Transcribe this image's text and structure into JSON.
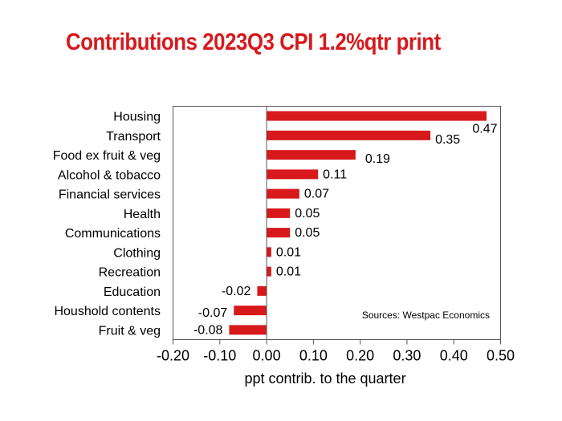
{
  "chart_data": {
    "type": "bar",
    "orientation": "horizontal",
    "title": "Contributions 2023Q3 CPI 1.2%qtr print",
    "categories": [
      "Housing",
      "Transport",
      "Food ex fruit & veg",
      "Alcohol & tobacco",
      "Financial services",
      "Health",
      "Communications",
      "Clothing",
      "Recreation",
      "Education",
      "Houshold contents",
      "Fruit & veg"
    ],
    "values": [
      0.47,
      0.35,
      0.19,
      0.11,
      0.07,
      0.05,
      0.05,
      0.01,
      0.01,
      -0.02,
      -0.07,
      -0.08
    ],
    "value_labels": [
      "0.47",
      "0.35",
      "0.19",
      "0.11",
      "0.07",
      "0.05",
      "0.05",
      "0.01",
      "0.01",
      "-0.02",
      "-0.07",
      "-0.08"
    ],
    "xlabel": "ppt contrib. to the quarter",
    "ylabel": "",
    "xlim": [
      -0.2,
      0.5
    ],
    "xticks": [
      -0.2,
      -0.1,
      0.0,
      0.1,
      0.2,
      0.3,
      0.4,
      0.5
    ],
    "xtick_labels": [
      "-0.20",
      "-0.10",
      "0.00",
      "0.10",
      "0.20",
      "0.30",
      "0.40",
      "0.50"
    ],
    "grid": false,
    "annotation": "Sources: Westpac Economics",
    "colors": {
      "bar": "#d7191c",
      "title": "#d7191c"
    }
  }
}
